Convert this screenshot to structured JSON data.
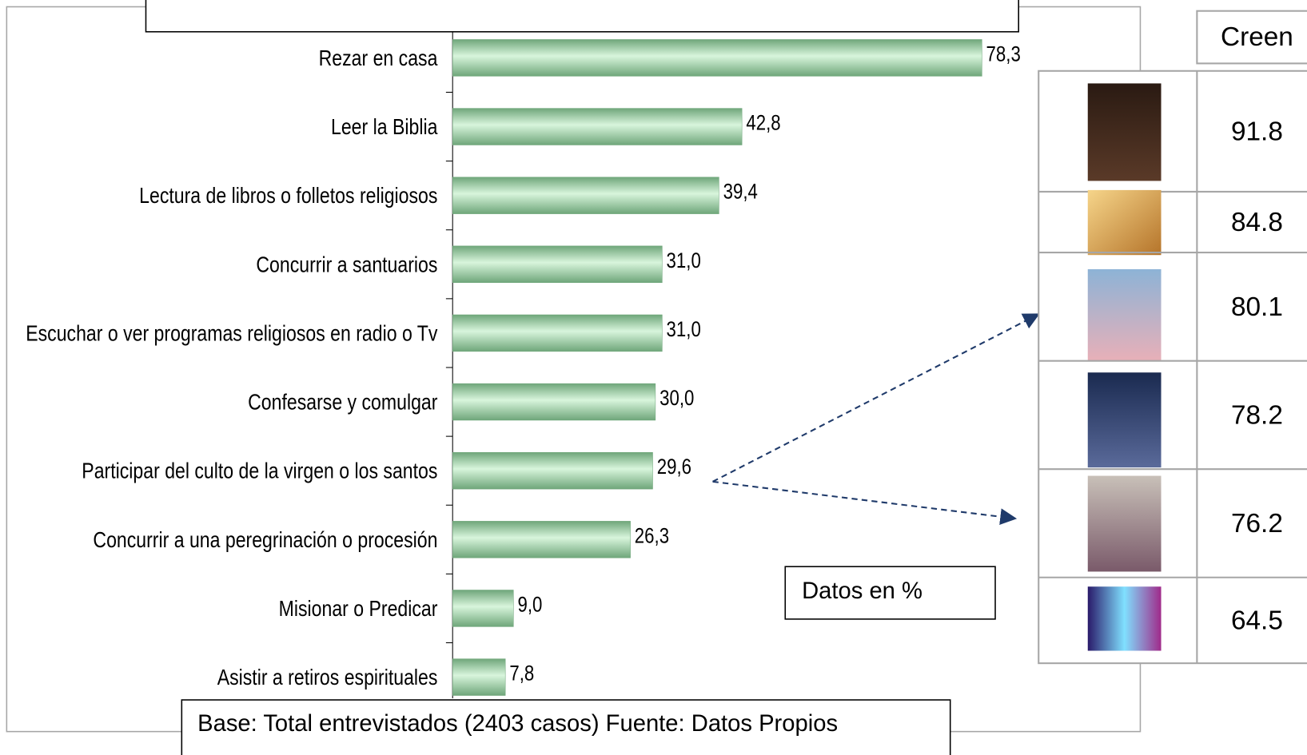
{
  "chart_data": {
    "type": "bar",
    "categories": [
      "Rezar en casa",
      "Leer la Biblia",
      "Lectura de libros o folletos religiosos",
      "Concurrir a santuarios",
      "Escuchar o ver programas religiosos en radio o Tv",
      "Confesarse y comulgar",
      "Participar del culto de la virgen o los santos",
      "Concurrir a una peregrinación o procesión",
      "Misionar o Predicar",
      "Asistir a retiros espirituales"
    ],
    "values": [
      78.3,
      42.8,
      39.4,
      31.0,
      31.0,
      30.0,
      29.6,
      26.3,
      9.0,
      7.8
    ],
    "value_labels": [
      "78,3",
      "42,8",
      "39,4",
      "31,0",
      "31,0",
      "30,0",
      "29,6",
      "26,3",
      "9,0",
      "7,8"
    ],
    "xlim": [
      0,
      100
    ],
    "color": "#b5e8bd",
    "annotation": "Datos en %",
    "footnote": "Base: Total entrevistados (2403 casos) Fuente: Datos Propios"
  },
  "table": {
    "header": "Creen",
    "rows": [
      91.8,
      84.8,
      80.1,
      78.2,
      76.2,
      64.5
    ]
  }
}
